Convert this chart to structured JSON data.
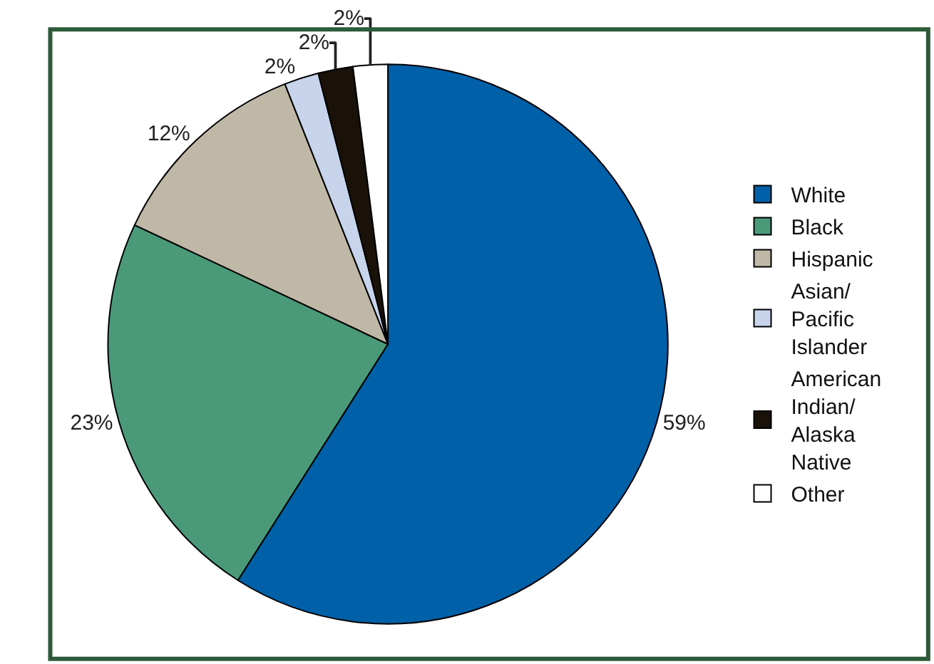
{
  "chart_data": {
    "type": "pie",
    "categories": [
      "White",
      "Black",
      "Hispanic",
      "Asian/Pacific Islander",
      "American Indian/Alaska Native",
      "Other"
    ],
    "values": [
      59,
      23,
      12,
      2,
      2,
      2
    ],
    "value_labels": [
      "59%",
      "23%",
      "12%",
      "2%",
      "2%",
      "2%"
    ],
    "colors": [
      "#0060a8",
      "#4a9a7a",
      "#c0b8a6",
      "#c8d4ec",
      "#1a1208",
      "#ffffff"
    ],
    "legend": "right"
  }
}
